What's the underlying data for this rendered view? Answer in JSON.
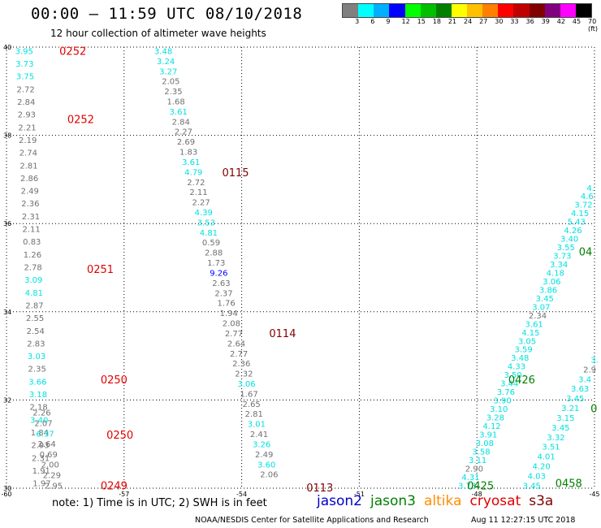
{
  "header": {
    "title": "00:00 — 11:59 UTC 08/10/2018",
    "subtitle": "12 hour collection of altimeter wave heights"
  },
  "colorbar": {
    "labels": [
      "3",
      "6",
      "9",
      "12",
      "15",
      "18",
      "21",
      "24",
      "27",
      "30",
      "33",
      "36",
      "39",
      "42",
      "45",
      "70 (ft)"
    ],
    "colors": [
      "#808080",
      "#00ffff",
      "#00b0ff",
      "#0000ff",
      "#00ff00",
      "#00c000",
      "#008000",
      "#ffff00",
      "#ffc000",
      "#ff8000",
      "#ff0000",
      "#c00000",
      "#800000",
      "#800080",
      "#ff00ff",
      "#000000"
    ]
  },
  "footer": {
    "note": "note: 1) Time is in UTC; 2) SWH is in feet",
    "satellites": [
      {
        "name": "jason2",
        "color": "#0000cc"
      },
      {
        "name": "jason3",
        "color": "#008000"
      },
      {
        "name": "altika",
        "color": "#ff8c00"
      },
      {
        "name": "cryosat",
        "color": "#e00000"
      },
      {
        "name": "s3a",
        "color": "#800000"
      }
    ],
    "credit": "NOAA/NESDIS Center for Satellite Applications and Research",
    "timestamp": "Aug 11 12:27:15 UTC 2018"
  },
  "chart_data": {
    "type": "scatter",
    "xlim": [
      -60,
      -45
    ],
    "ylim": [
      30,
      40
    ],
    "xticks": [
      "-60",
      "-57",
      "-54",
      "-51",
      "-48",
      "-45"
    ],
    "yticks": [
      "30",
      "32",
      "34",
      "36",
      "38",
      "40"
    ],
    "grid": true,
    "colors": {
      "gray": "#707070",
      "cyan": "#00e0e0",
      "blue": "#0000ff",
      "red": "#e00000",
      "darkred": "#800000",
      "green": "#008000"
    },
    "tracks": [
      {
        "x0": -59.55,
        "y0": 39.9,
        "x1": -59.1,
        "y1": 30.1,
        "values": [
          [
            "3.95",
            "cyan"
          ],
          [
            "3.73",
            "cyan"
          ],
          [
            "3.75",
            "cyan"
          ],
          [
            "2.72",
            "gray"
          ],
          [
            "2.84",
            "gray"
          ],
          [
            "2.93",
            "gray"
          ],
          [
            "2.21",
            "gray"
          ],
          [
            "2.19",
            "gray"
          ],
          [
            "2.74",
            "gray"
          ],
          [
            "2.81",
            "gray"
          ],
          [
            "2.86",
            "gray"
          ],
          [
            "2.49",
            "gray"
          ],
          [
            "2.36",
            "gray"
          ],
          [
            "2.31",
            "gray"
          ],
          [
            "2.11",
            "gray"
          ],
          [
            "0.83",
            "gray"
          ],
          [
            "1.26",
            "gray"
          ],
          [
            "2.78",
            "gray"
          ],
          [
            "3.09",
            "cyan"
          ],
          [
            "4.81",
            "cyan"
          ],
          [
            "2.87",
            "gray"
          ],
          [
            "2.55",
            "gray"
          ],
          [
            "2.54",
            "gray"
          ],
          [
            "2.83",
            "gray"
          ],
          [
            "3.03",
            "cyan"
          ],
          [
            "2.35",
            "gray"
          ],
          [
            "3.66",
            "cyan"
          ],
          [
            "3.18",
            "cyan"
          ],
          [
            "2.18",
            "gray"
          ],
          [
            "3.40",
            "cyan"
          ],
          [
            "1.84",
            "gray"
          ],
          [
            "2.93",
            "gray"
          ],
          [
            "2.31",
            "gray"
          ],
          [
            "1.91",
            "gray"
          ],
          [
            "1.97",
            "gray"
          ]
        ]
      },
      {
        "x0": -59.1,
        "y0": 31.7,
        "x1": -58.8,
        "y1": 30.05,
        "values": [
          [
            "2.26",
            "gray"
          ],
          [
            "2.07",
            "gray"
          ],
          [
            "6.37",
            "cyan"
          ],
          [
            "2.64",
            "gray"
          ],
          [
            "0.69",
            "gray"
          ],
          [
            "2.00",
            "gray"
          ],
          [
            "2.29",
            "gray"
          ],
          [
            "2.95",
            "gray"
          ]
        ]
      },
      {
        "x0": -56.0,
        "y0": 39.9,
        "x1": -53.3,
        "y1": 30.3,
        "values": [
          [
            "3.48",
            "cyan"
          ],
          [
            "3.24",
            "cyan"
          ],
          [
            "3.27",
            "cyan"
          ],
          [
            "2.05",
            "gray"
          ],
          [
            "2.35",
            "gray"
          ],
          [
            "1.68",
            "gray"
          ],
          [
            "3.61",
            "cyan"
          ],
          [
            "2.84",
            "gray"
          ],
          [
            "2.27",
            "gray"
          ],
          [
            "2.69",
            "gray"
          ],
          [
            "1.83",
            "gray"
          ],
          [
            "3.61",
            "cyan"
          ],
          [
            "4.79",
            "cyan"
          ],
          [
            "2.72",
            "gray"
          ],
          [
            "2.11",
            "gray"
          ],
          [
            "2.27",
            "gray"
          ],
          [
            "4.39",
            "cyan"
          ],
          [
            "3.53",
            "cyan"
          ],
          [
            "4.81",
            "cyan"
          ],
          [
            "0.59",
            "gray"
          ],
          [
            "2.88",
            "gray"
          ],
          [
            "1.73",
            "gray"
          ],
          [
            "9.26",
            "blue"
          ],
          [
            "2.63",
            "gray"
          ],
          [
            "2.37",
            "gray"
          ],
          [
            "1.76",
            "gray"
          ],
          [
            "1.94",
            "gray"
          ],
          [
            "2.08",
            "gray"
          ],
          [
            "2.77",
            "gray"
          ],
          [
            "2.64",
            "gray"
          ],
          [
            "2.77",
            "gray"
          ],
          [
            "2.36",
            "gray"
          ],
          [
            "2.32",
            "gray"
          ],
          [
            "3.06",
            "cyan"
          ],
          [
            "1.67",
            "gray"
          ],
          [
            "2.65",
            "gray"
          ],
          [
            "2.81",
            "gray"
          ],
          [
            "3.01",
            "cyan"
          ],
          [
            "2.41",
            "gray"
          ],
          [
            "3.26",
            "cyan"
          ],
          [
            "2.49",
            "gray"
          ],
          [
            "3.60",
            "cyan"
          ],
          [
            "2.06",
            "gray"
          ]
        ]
      },
      {
        "x0": -45.1,
        "y0": 36.8,
        "x1": -48.25,
        "y1": 30.05,
        "values": [
          [
            "4.",
            "cyan"
          ],
          [
            "4.6",
            "cyan"
          ],
          [
            "3.72",
            "cyan"
          ],
          [
            "4.15",
            "cyan"
          ],
          [
            "5.43",
            "cyan"
          ],
          [
            "4.26",
            "cyan"
          ],
          [
            "3.40",
            "cyan"
          ],
          [
            "3.55",
            "cyan"
          ],
          [
            "3.73",
            "cyan"
          ],
          [
            "3.34",
            "cyan"
          ],
          [
            "4.18",
            "cyan"
          ],
          [
            "3.06",
            "cyan"
          ],
          [
            "3.86",
            "cyan"
          ],
          [
            "3.45",
            "cyan"
          ],
          [
            "3.07",
            "cyan"
          ],
          [
            "2.34",
            "gray"
          ],
          [
            "3.61",
            "cyan"
          ],
          [
            "4.15",
            "cyan"
          ],
          [
            "3.05",
            "cyan"
          ],
          [
            "3.59",
            "cyan"
          ],
          [
            "3.48",
            "cyan"
          ],
          [
            "4.33",
            "cyan"
          ],
          [
            "3.50",
            "cyan"
          ],
          [
            "3.44",
            "cyan"
          ],
          [
            "3.76",
            "cyan"
          ],
          [
            "3.90",
            "cyan"
          ],
          [
            "3.10",
            "cyan"
          ],
          [
            "3.28",
            "cyan"
          ],
          [
            "4.12",
            "cyan"
          ],
          [
            "3.91",
            "cyan"
          ],
          [
            "3.08",
            "cyan"
          ],
          [
            "3.58",
            "cyan"
          ],
          [
            "3.11",
            "cyan"
          ],
          [
            "2.90",
            "gray"
          ],
          [
            "4.31",
            "cyan"
          ],
          [
            "3.73",
            "cyan"
          ]
        ]
      },
      {
        "x0": -45.0,
        "y0": 32.9,
        "x1": -46.6,
        "y1": 30.05,
        "values": [
          [
            "3.",
            "cyan"
          ],
          [
            "2.9",
            "gray"
          ],
          [
            "3.4",
            "cyan"
          ],
          [
            "3.63",
            "cyan"
          ],
          [
            "3.45",
            "cyan"
          ],
          [
            "3.21",
            "cyan"
          ],
          [
            "3.15",
            "cyan"
          ],
          [
            "3.45",
            "cyan"
          ],
          [
            "3.32",
            "cyan"
          ],
          [
            "3.51",
            "cyan"
          ],
          [
            "4.01",
            "cyan"
          ],
          [
            "4.20",
            "cyan"
          ],
          [
            "4.03",
            "cyan"
          ],
          [
            "3.45",
            "cyan"
          ]
        ]
      }
    ],
    "time_labels": [
      {
        "text": "0252",
        "x": -58.65,
        "y": 39.9,
        "color": "red"
      },
      {
        "text": "0252",
        "x": -58.45,
        "y": 38.35,
        "color": "red"
      },
      {
        "text": "0251",
        "x": -57.95,
        "y": 34.95,
        "color": "red"
      },
      {
        "text": "0250",
        "x": -57.6,
        "y": 32.45,
        "color": "red"
      },
      {
        "text": "0250",
        "x": -57.45,
        "y": 31.2,
        "color": "red"
      },
      {
        "text": "0249",
        "x": -57.6,
        "y": 30.05,
        "color": "red"
      },
      {
        "text": "0115",
        "x": -54.5,
        "y": 37.15,
        "color": "darkred"
      },
      {
        "text": "0114",
        "x": -53.3,
        "y": 33.5,
        "color": "darkred"
      },
      {
        "text": "0113",
        "x": -52.35,
        "y": 30.0,
        "color": "darkred"
      },
      {
        "text": "0426",
        "x": -47.2,
        "y": 32.45,
        "color": "green"
      },
      {
        "text": "0425",
        "x": -48.25,
        "y": 30.05,
        "color": "green"
      },
      {
        "text": "0458",
        "x": -46.0,
        "y": 30.1,
        "color": "green"
      },
      {
        "text": "04",
        "x": -45.4,
        "y": 35.35,
        "color": "green"
      },
      {
        "text": "0",
        "x": -45.1,
        "y": 31.8,
        "color": "green"
      }
    ]
  }
}
